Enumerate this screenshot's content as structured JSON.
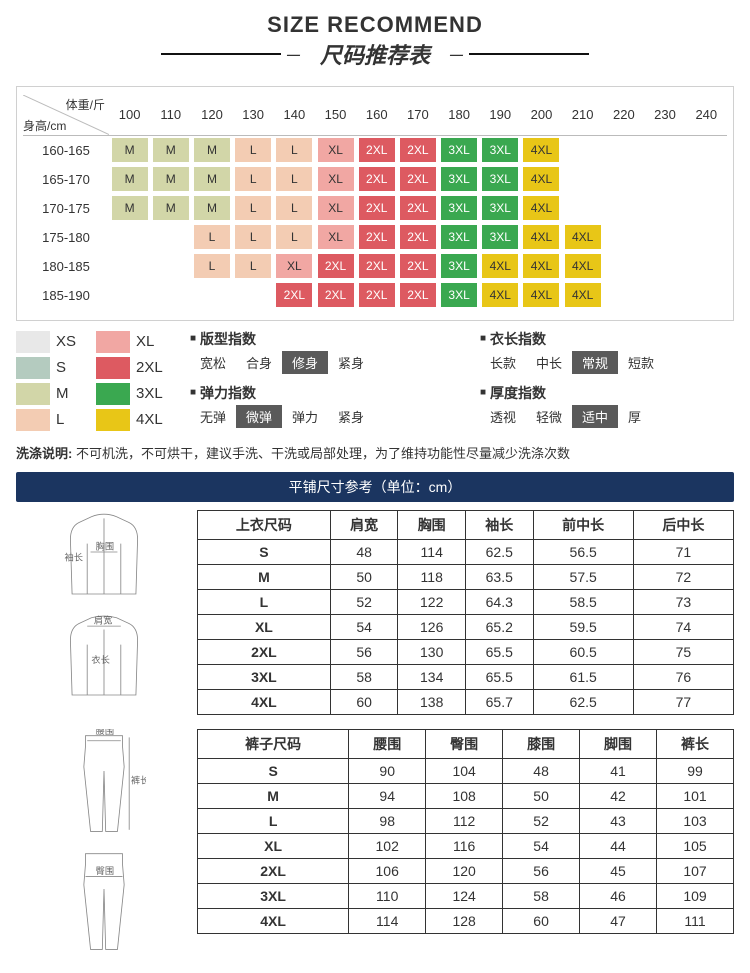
{
  "header": {
    "en": "SIZE RECOMMEND",
    "cn_prefix": "—",
    "cn": "尺码推荐表",
    "cn_suffix": "—"
  },
  "colors": {
    "XS": "#e8e8e8",
    "S": "#b4cbbf",
    "M": "#d2d6a8",
    "L": "#f3ccb3",
    "XL": "#f1a7a3",
    "2XL": "#dd5a61",
    "3XL": "#3aa850",
    "4XL": "#e8c617"
  },
  "rec": {
    "corner_w": "体重/斤",
    "corner_h": "身高/cm",
    "weights": [
      "100",
      "110",
      "120",
      "130",
      "140",
      "150",
      "160",
      "170",
      "180",
      "190",
      "200",
      "210",
      "220",
      "230",
      "240"
    ],
    "rows": [
      {
        "h": "160-165",
        "cells": [
          "M",
          "M",
          "M",
          "L",
          "L",
          "XL",
          "2XL",
          "2XL",
          "3XL",
          "3XL",
          "4XL",
          "",
          "",
          "",
          ""
        ]
      },
      {
        "h": "165-170",
        "cells": [
          "M",
          "M",
          "M",
          "L",
          "L",
          "XL",
          "2XL",
          "2XL",
          "3XL",
          "3XL",
          "4XL",
          "",
          "",
          "",
          ""
        ]
      },
      {
        "h": "170-175",
        "cells": [
          "M",
          "M",
          "M",
          "L",
          "L",
          "XL",
          "2XL",
          "2XL",
          "3XL",
          "3XL",
          "4XL",
          "",
          "",
          "",
          ""
        ]
      },
      {
        "h": "175-180",
        "cells": [
          "",
          "",
          "L",
          "L",
          "L",
          "XL",
          "2XL",
          "2XL",
          "3XL",
          "3XL",
          "4XL",
          "4XL",
          "",
          "",
          ""
        ]
      },
      {
        "h": "180-185",
        "cells": [
          "",
          "",
          "L",
          "L",
          "XL",
          "2XL",
          "2XL",
          "2XL",
          "3XL",
          "4XL",
          "4XL",
          "4XL",
          "",
          "",
          ""
        ]
      },
      {
        "h": "185-190",
        "cells": [
          "",
          "",
          "",
          "",
          "2XL",
          "2XL",
          "2XL",
          "2XL",
          "3XL",
          "4XL",
          "4XL",
          "4XL",
          "",
          "",
          ""
        ]
      }
    ]
  },
  "legend": [
    [
      "XS",
      "XL"
    ],
    [
      "S",
      "2XL"
    ],
    [
      "M",
      "3XL"
    ],
    [
      "L",
      "4XL"
    ]
  ],
  "metrics": [
    {
      "title": "版型指数",
      "opts": [
        "宽松",
        "合身",
        "修身",
        "紧身"
      ],
      "active": 2
    },
    {
      "title": "衣长指数",
      "opts": [
        "长款",
        "中长",
        "常规",
        "短款"
      ],
      "active": 2
    },
    {
      "title": "弹力指数",
      "opts": [
        "无弹",
        "微弹",
        "弹力",
        "紧身"
      ],
      "active": 1
    },
    {
      "title": "厚度指数",
      "opts": [
        "透视",
        "轻微",
        "适中",
        "厚"
      ],
      "active": 2
    }
  ],
  "wash": {
    "label": "洗涤说明:",
    "text": "不可机洗，不可烘干，建议手洗、干洗或局部处理，为了维持功能性尽量减少洗涤次数"
  },
  "banner": "平铺尺寸参考（单位：cm）",
  "top_table": {
    "headers": [
      "上衣尺码",
      "肩宽",
      "胸围",
      "袖长",
      "前中长",
      "后中长"
    ],
    "rows": [
      [
        "S",
        "48",
        "114",
        "62.5",
        "56.5",
        "71"
      ],
      [
        "M",
        "50",
        "118",
        "63.5",
        "57.5",
        "72"
      ],
      [
        "L",
        "52",
        "122",
        "64.3",
        "58.5",
        "73"
      ],
      [
        "XL",
        "54",
        "126",
        "65.2",
        "59.5",
        "74"
      ],
      [
        "2XL",
        "56",
        "130",
        "65.5",
        "60.5",
        "75"
      ],
      [
        "3XL",
        "58",
        "134",
        "65.5",
        "61.5",
        "76"
      ],
      [
        "4XL",
        "60",
        "138",
        "65.7",
        "62.5",
        "77"
      ]
    ]
  },
  "pants_table": {
    "headers": [
      "裤子尺码",
      "腰围",
      "臀围",
      "膝围",
      "脚围",
      "裤长"
    ],
    "rows": [
      [
        "S",
        "90",
        "104",
        "48",
        "41",
        "99"
      ],
      [
        "M",
        "94",
        "108",
        "50",
        "42",
        "101"
      ],
      [
        "L",
        "98",
        "112",
        "52",
        "43",
        "103"
      ],
      [
        "XL",
        "102",
        "116",
        "54",
        "44",
        "105"
      ],
      [
        "2XL",
        "106",
        "120",
        "56",
        "45",
        "107"
      ],
      [
        "3XL",
        "110",
        "124",
        "58",
        "46",
        "109"
      ],
      [
        "4XL",
        "114",
        "128",
        "60",
        "47",
        "111"
      ]
    ]
  },
  "dia_labels": {
    "sleeve": "袖长",
    "chest": "胸围",
    "shoulder": "肩宽",
    "length": "衣长",
    "waist": "腰围",
    "pant_len": "裤长",
    "hip": "臀围"
  }
}
